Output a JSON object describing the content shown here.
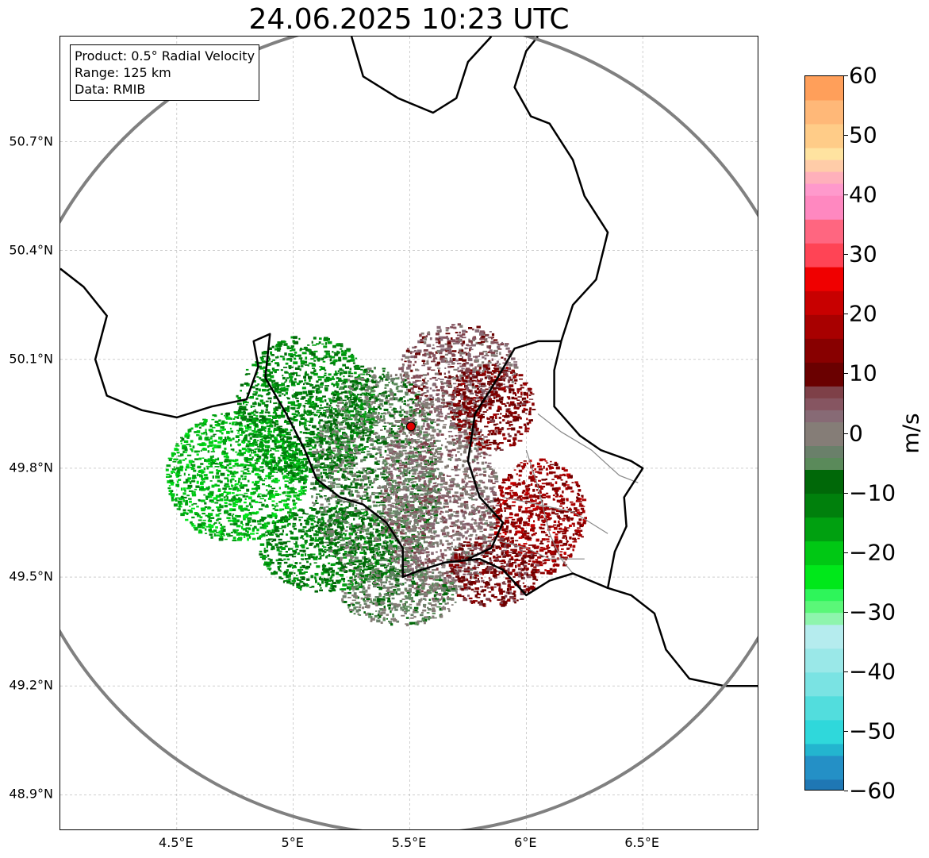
{
  "title": "24.06.2025 10:23 UTC",
  "info_box": {
    "product": "Product: 0.5° Radial Velocity",
    "range": "Range: 125 km",
    "data": "Data: RMIB"
  },
  "map": {
    "extent": {
      "lon_min": 4.0,
      "lon_max": 7.0,
      "lat_min": 48.8,
      "lat_max": 50.99
    },
    "radar_site": {
      "lon": 5.505,
      "lat": 49.915
    },
    "range_km": 125,
    "lat_ticks": [
      {
        "value": 50.7,
        "label": "50.7°N"
      },
      {
        "value": 50.4,
        "label": "50.4°N"
      },
      {
        "value": 50.1,
        "label": "50.1°N"
      },
      {
        "value": 49.8,
        "label": "49.8°N"
      },
      {
        "value": 49.5,
        "label": "49.5°N"
      },
      {
        "value": 49.2,
        "label": "49.2°N"
      },
      {
        "value": 48.9,
        "label": "48.9°N"
      }
    ],
    "lon_ticks": [
      {
        "value": 4.5,
        "label": "4.5°E"
      },
      {
        "value": 5.0,
        "label": "5°E"
      },
      {
        "value": 5.5,
        "label": "5.5°E"
      },
      {
        "value": 6.0,
        "label": "6°E"
      },
      {
        "value": 6.5,
        "label": "6.5°E"
      }
    ],
    "colors": {
      "range_ring": "#808080",
      "border": "#000000",
      "province_border": "#888888",
      "grid": "#b0b0b0",
      "radar_marker": "#e00000"
    },
    "echo_regions": [
      {
        "name": "strong-inbound-west",
        "lon": 4.75,
        "lat": 49.78,
        "rlon": 0.3,
        "rlat": 0.18,
        "velocity": -18
      },
      {
        "name": "inbound-northwest",
        "lon": 5.05,
        "lat": 49.97,
        "rlon": 0.3,
        "rlat": 0.2,
        "velocity": -13
      },
      {
        "name": "inbound-southwest",
        "lon": 5.15,
        "lat": 49.58,
        "rlon": 0.3,
        "rlat": 0.12,
        "velocity": -12
      },
      {
        "name": "weak-inbound-center",
        "lon": 5.35,
        "lat": 49.78,
        "rlon": 0.28,
        "rlat": 0.3,
        "velocity": -5
      },
      {
        "name": "near-zero-center",
        "lon": 5.62,
        "lat": 49.72,
        "rlon": 0.25,
        "rlat": 0.28,
        "velocity": 2
      },
      {
        "name": "weak-outbound-north",
        "lon": 5.7,
        "lat": 50.08,
        "rlon": 0.25,
        "rlat": 0.12,
        "velocity": 5
      },
      {
        "name": "outbound-northeast",
        "lon": 5.85,
        "lat": 49.97,
        "rlon": 0.18,
        "rlat": 0.12,
        "velocity": 12
      },
      {
        "name": "strong-outbound-east",
        "lon": 6.05,
        "lat": 49.67,
        "rlon": 0.2,
        "rlat": 0.16,
        "velocity": 16
      },
      {
        "name": "outbound-southeast",
        "lon": 5.85,
        "lat": 49.52,
        "rlon": 0.2,
        "rlat": 0.1,
        "velocity": 10
      },
      {
        "name": "weak-south",
        "lon": 5.45,
        "lat": 49.45,
        "rlon": 0.25,
        "rlat": 0.08,
        "velocity": -3
      }
    ],
    "borders": [
      {
        "name": "belgium-france-west",
        "points": [
          [
            4.0,
            50.35
          ],
          [
            4.1,
            50.3
          ],
          [
            4.2,
            50.22
          ],
          [
            4.15,
            50.1
          ],
          [
            4.2,
            50.0
          ],
          [
            4.35,
            49.96
          ],
          [
            4.5,
            49.94
          ],
          [
            4.65,
            49.97
          ],
          [
            4.8,
            49.99
          ],
          [
            4.85,
            50.08
          ],
          [
            4.83,
            50.15
          ],
          [
            4.9,
            50.17
          ],
          [
            4.88,
            50.05
          ],
          [
            4.97,
            49.95
          ],
          [
            5.05,
            49.85
          ],
          [
            5.1,
            49.77
          ],
          [
            5.2,
            49.72
          ],
          [
            5.3,
            49.7
          ],
          [
            5.4,
            49.65
          ],
          [
            5.47,
            49.58
          ],
          [
            5.47,
            49.5
          ],
          [
            5.55,
            49.52
          ],
          [
            5.65,
            49.54
          ],
          [
            5.8,
            49.55
          ],
          [
            5.9,
            49.52
          ],
          [
            6.0,
            49.45
          ],
          [
            6.1,
            49.49
          ],
          [
            6.2,
            49.51
          ],
          [
            6.35,
            49.47
          ],
          [
            6.45,
            49.45
          ],
          [
            6.55,
            49.4
          ],
          [
            6.6,
            49.3
          ],
          [
            6.7,
            49.22
          ],
          [
            6.85,
            49.2
          ],
          [
            7.0,
            49.2
          ]
        ]
      },
      {
        "name": "belgium-luxembourg",
        "points": [
          [
            5.75,
            49.55
          ],
          [
            5.85,
            49.58
          ],
          [
            5.9,
            49.65
          ],
          [
            5.8,
            49.72
          ],
          [
            5.75,
            49.82
          ],
          [
            5.78,
            49.95
          ],
          [
            5.85,
            50.02
          ],
          [
            5.95,
            50.13
          ],
          [
            6.05,
            50.15
          ],
          [
            6.15,
            50.15
          ]
        ]
      },
      {
        "name": "luxembourg-germany",
        "points": [
          [
            6.15,
            50.15
          ],
          [
            6.12,
            50.07
          ],
          [
            6.12,
            49.97
          ],
          [
            6.23,
            49.89
          ],
          [
            6.32,
            49.85
          ],
          [
            6.45,
            49.82
          ],
          [
            6.5,
            49.8
          ],
          [
            6.42,
            49.72
          ],
          [
            6.43,
            49.64
          ],
          [
            6.38,
            49.57
          ],
          [
            6.35,
            49.47
          ]
        ]
      },
      {
        "name": "belgium-germany-north",
        "points": [
          [
            6.15,
            50.15
          ],
          [
            6.2,
            50.25
          ],
          [
            6.3,
            50.32
          ],
          [
            6.35,
            50.45
          ],
          [
            6.25,
            50.55
          ],
          [
            6.2,
            50.65
          ],
          [
            6.1,
            50.75
          ],
          [
            6.02,
            50.77
          ],
          [
            5.95,
            50.85
          ],
          [
            6.0,
            50.95
          ],
          [
            6.05,
            50.99
          ]
        ]
      },
      {
        "name": "netherlands-south",
        "points": [
          [
            5.25,
            50.99
          ],
          [
            5.3,
            50.88
          ],
          [
            5.45,
            50.82
          ],
          [
            5.6,
            50.78
          ],
          [
            5.7,
            50.82
          ],
          [
            5.75,
            50.92
          ],
          [
            5.85,
            50.99
          ]
        ]
      }
    ],
    "province_lines": [
      {
        "name": "luxembourg-cantons-a",
        "points": [
          [
            6.05,
            49.95
          ],
          [
            6.15,
            49.9
          ],
          [
            6.28,
            49.85
          ],
          [
            6.4,
            49.78
          ],
          [
            6.48,
            49.76
          ]
        ]
      },
      {
        "name": "luxembourg-cantons-b",
        "points": [
          [
            5.9,
            49.72
          ],
          [
            6.05,
            49.7
          ],
          [
            6.2,
            49.68
          ],
          [
            6.35,
            49.62
          ]
        ]
      },
      {
        "name": "luxembourg-cantons-c",
        "points": [
          [
            6.0,
            49.85
          ],
          [
            6.05,
            49.75
          ],
          [
            6.1,
            49.62
          ],
          [
            6.15,
            49.55
          ],
          [
            6.2,
            49.51
          ]
        ]
      },
      {
        "name": "luxembourg-cantons-d",
        "points": [
          [
            5.88,
            49.6
          ],
          [
            6.0,
            49.58
          ],
          [
            6.1,
            49.55
          ],
          [
            6.25,
            49.55
          ]
        ]
      }
    ]
  },
  "colorbar": {
    "min": -60,
    "max": 60,
    "unit": "m/s",
    "ticks": [
      {
        "value": 60,
        "label": "60"
      },
      {
        "value": 50,
        "label": "50"
      },
      {
        "value": 40,
        "label": "40"
      },
      {
        "value": 30,
        "label": "30"
      },
      {
        "value": 20,
        "label": "20"
      },
      {
        "value": 10,
        "label": "10"
      },
      {
        "value": 0,
        "label": "0"
      },
      {
        "value": -10,
        "label": "−10"
      },
      {
        "value": -20,
        "label": "−20"
      },
      {
        "value": -30,
        "label": "−30"
      },
      {
        "value": -40,
        "label": "−40"
      },
      {
        "value": -50,
        "label": "−50"
      },
      {
        "value": -60,
        "label": "−60"
      }
    ],
    "bands": [
      {
        "from": -60,
        "to": -58,
        "color": "#1f77b4"
      },
      {
        "from": -58,
        "to": -54,
        "color": "#2490c6"
      },
      {
        "from": -54,
        "to": -52,
        "color": "#23b5cf"
      },
      {
        "from": -52,
        "to": -48,
        "color": "#2fd8db"
      },
      {
        "from": -48,
        "to": -44,
        "color": "#52dddd"
      },
      {
        "from": -44,
        "to": -40,
        "color": "#7ae3e3"
      },
      {
        "from": -40,
        "to": -36,
        "color": "#9ae8e8"
      },
      {
        "from": -36,
        "to": -32,
        "color": "#b5ecee"
      },
      {
        "from": -32,
        "to": -30,
        "color": "#8ef5ad"
      },
      {
        "from": -30,
        "to": -28,
        "color": "#5af778"
      },
      {
        "from": -28,
        "to": -26,
        "color": "#2ef55a"
      },
      {
        "from": -26,
        "to": -22,
        "color": "#00e81a"
      },
      {
        "from": -22,
        "to": -18,
        "color": "#00c814"
      },
      {
        "from": -18,
        "to": -14,
        "color": "#00a010"
      },
      {
        "from": -14,
        "to": -10,
        "color": "#00800c"
      },
      {
        "from": -10,
        "to": -6,
        "color": "#006808"
      },
      {
        "from": -6,
        "to": -4,
        "color": "#5a8a5a"
      },
      {
        "from": -4,
        "to": -2,
        "color": "#6a806a"
      },
      {
        "from": -2,
        "to": 2,
        "color": "#857d77"
      },
      {
        "from": 2,
        "to": 4,
        "color": "#876a75"
      },
      {
        "from": 4,
        "to": 6,
        "color": "#865561"
      },
      {
        "from": 6,
        "to": 8,
        "color": "#7e4048"
      },
      {
        "from": 8,
        "to": 12,
        "color": "#6a0000"
      },
      {
        "from": 12,
        "to": 16,
        "color": "#880000"
      },
      {
        "from": 16,
        "to": 20,
        "color": "#a80000"
      },
      {
        "from": 20,
        "to": 24,
        "color": "#c80000"
      },
      {
        "from": 24,
        "to": 28,
        "color": "#f00000"
      },
      {
        "from": 28,
        "to": 32,
        "color": "#ff4455"
      },
      {
        "from": 32,
        "to": 36,
        "color": "#ff6680"
      },
      {
        "from": 36,
        "to": 40,
        "color": "#ff88c0"
      },
      {
        "from": 40,
        "to": 42,
        "color": "#ff99cc"
      },
      {
        "from": 42,
        "to": 44,
        "color": "#ffb0bb"
      },
      {
        "from": 44,
        "to": 46,
        "color": "#ffcca8"
      },
      {
        "from": 46,
        "to": 48,
        "color": "#ffe3a0"
      },
      {
        "from": 48,
        "to": 52,
        "color": "#ffcc88"
      },
      {
        "from": 52,
        "to": 56,
        "color": "#ffb878"
      },
      {
        "from": 56,
        "to": 60,
        "color": "#ff9f5a"
      }
    ]
  }
}
